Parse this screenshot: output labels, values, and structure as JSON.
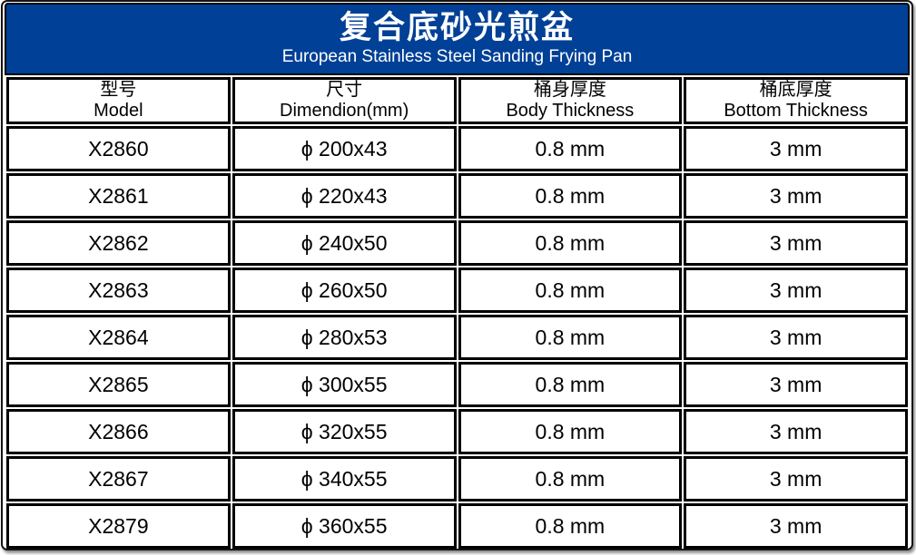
{
  "banner": {
    "title_cn": "复合底砂光煎盆",
    "title_en": "European Stainless Steel Sanding Frying Pan",
    "bg_color": "#004096",
    "text_color": "#ffffff"
  },
  "table": {
    "columns": [
      {
        "cn": "型号",
        "en": "Model"
      },
      {
        "cn": "尺寸",
        "en": "Dimendion(mm)"
      },
      {
        "cn": "桶身厚度",
        "en": "Body Thickness"
      },
      {
        "cn": "桶底厚度",
        "en": "Bottom Thickness"
      }
    ],
    "rows": [
      {
        "model": "X2860",
        "dimension": "ϕ 200x43",
        "body_thickness": "0.8 mm",
        "bottom_thickness": "3 mm"
      },
      {
        "model": "X2861",
        "dimension": "ϕ 220x43",
        "body_thickness": "0.8 mm",
        "bottom_thickness": "3 mm"
      },
      {
        "model": "X2862",
        "dimension": "ϕ 240x50",
        "body_thickness": "0.8 mm",
        "bottom_thickness": "3 mm"
      },
      {
        "model": "X2863",
        "dimension": "ϕ 260x50",
        "body_thickness": "0.8 mm",
        "bottom_thickness": "3 mm"
      },
      {
        "model": "X2864",
        "dimension": "ϕ 280x53",
        "body_thickness": "0.8 mm",
        "bottom_thickness": "3 mm"
      },
      {
        "model": "X2865",
        "dimension": "ϕ 300x55",
        "body_thickness": "0.8 mm",
        "bottom_thickness": "3 mm"
      },
      {
        "model": "X2866",
        "dimension": "ϕ 320x55",
        "body_thickness": "0.8 mm",
        "bottom_thickness": "3 mm"
      },
      {
        "model": "X2867",
        "dimension": "ϕ 340x55",
        "body_thickness": "0.8 mm",
        "bottom_thickness": "3 mm"
      },
      {
        "model": "X2879",
        "dimension": "ϕ 360x55",
        "body_thickness": "0.8 mm",
        "bottom_thickness": "3 mm"
      }
    ]
  }
}
